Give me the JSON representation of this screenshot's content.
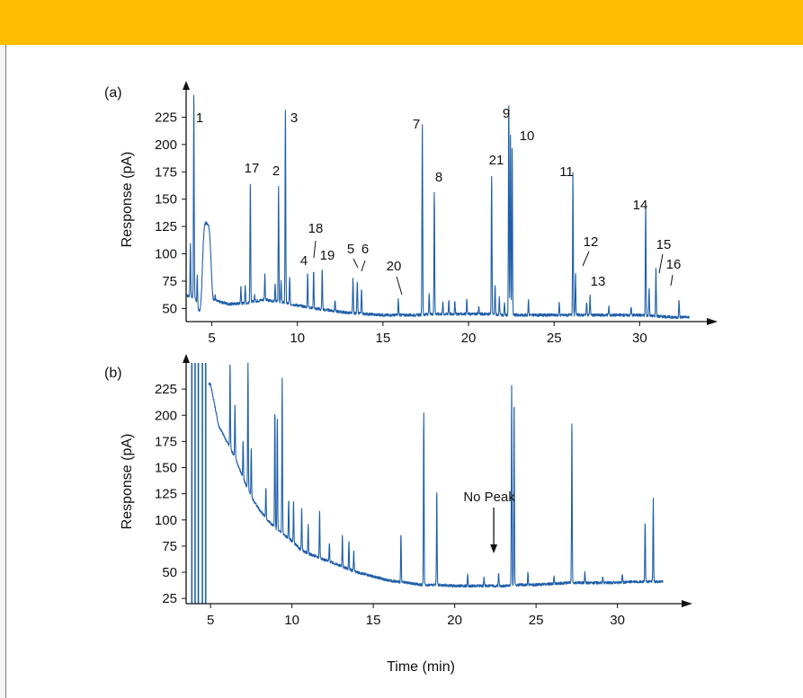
{
  "colors": {
    "band": "#ffbd00",
    "trace": "#1f5fa8",
    "axis": "#111111"
  },
  "chart_data": [
    {
      "type": "line",
      "panel_label": "(a)",
      "xlabel": "",
      "ylabel": "Response (pA)",
      "xlim": [
        3.5,
        33.5
      ],
      "ylim": [
        38,
        250
      ],
      "xticks": [
        5,
        10,
        15,
        20,
        25,
        30
      ],
      "yticks": [
        50,
        75,
        100,
        125,
        150,
        175,
        200,
        225
      ],
      "baseline": [
        [
          3.5,
          62
        ],
        [
          4.0,
          60
        ],
        [
          5.0,
          58
        ],
        [
          6.0,
          54
        ],
        [
          7.0,
          55
        ],
        [
          8.0,
          58
        ],
        [
          9.0,
          56
        ],
        [
          10.0,
          53
        ],
        [
          11.0,
          50
        ],
        [
          12.0,
          48
        ],
        [
          13.0,
          46
        ],
        [
          14.0,
          45
        ],
        [
          15.0,
          44
        ],
        [
          16.0,
          44
        ],
        [
          17.0,
          44
        ],
        [
          18.0,
          45
        ],
        [
          19.0,
          45
        ],
        [
          20.0,
          45
        ],
        [
          21.0,
          45
        ],
        [
          22.0,
          44
        ],
        [
          23.0,
          44
        ],
        [
          24.0,
          44
        ],
        [
          25.0,
          44
        ],
        [
          26.0,
          44
        ],
        [
          27.0,
          44
        ],
        [
          28.0,
          44
        ],
        [
          29.0,
          44
        ],
        [
          30.0,
          44
        ],
        [
          31.0,
          43
        ],
        [
          32.0,
          42
        ],
        [
          33.0,
          42
        ]
      ],
      "humps": [
        [
          4.7,
          128,
          0.28
        ],
        [
          4.3,
          30,
          0.2
        ]
      ],
      "peaks": [
        [
          3.75,
          110
        ],
        [
          3.95,
          250
        ],
        [
          4.15,
          90
        ],
        [
          5.2,
          62
        ],
        [
          6.7,
          70
        ],
        [
          6.95,
          72
        ],
        [
          7.25,
          167
        ],
        [
          7.5,
          62
        ],
        [
          8.1,
          82
        ],
        [
          8.7,
          72
        ],
        [
          8.9,
          163
        ],
        [
          9.05,
          75
        ],
        [
          9.3,
          233
        ],
        [
          9.55,
          78
        ],
        [
          10.6,
          82
        ],
        [
          10.95,
          85
        ],
        [
          11.45,
          85
        ],
        [
          12.2,
          58
        ],
        [
          13.25,
          78
        ],
        [
          13.5,
          75
        ],
        [
          13.75,
          68
        ],
        [
          15.9,
          58
        ],
        [
          17.3,
          220
        ],
        [
          17.7,
          63
        ],
        [
          18.0,
          157
        ],
        [
          18.5,
          55
        ],
        [
          18.85,
          58
        ],
        [
          19.2,
          56
        ],
        [
          19.9,
          58
        ],
        [
          20.6,
          52
        ],
        [
          21.35,
          172
        ],
        [
          21.55,
          72
        ],
        [
          21.8,
          60
        ],
        [
          22.1,
          55
        ],
        [
          22.35,
          240
        ],
        [
          22.45,
          210
        ],
        [
          22.55,
          199
        ],
        [
          23.5,
          58
        ],
        [
          25.3,
          55
        ],
        [
          26.1,
          175
        ],
        [
          26.25,
          82
        ],
        [
          26.9,
          56
        ],
        [
          27.1,
          62
        ],
        [
          28.2,
          52
        ],
        [
          29.5,
          52
        ],
        [
          30.35,
          145
        ],
        [
          30.55,
          68
        ],
        [
          30.95,
          87
        ],
        [
          32.3,
          58
        ]
      ],
      "peak_labels": [
        {
          "text": "1",
          "x": 3.95
        },
        {
          "text": "17",
          "x": 7.25
        },
        {
          "text": "2",
          "x": 8.9
        },
        {
          "text": "3",
          "x": 9.3
        },
        {
          "text": "4",
          "x": 10.6
        },
        {
          "text": "18",
          "x": 10.95
        },
        {
          "text": "19",
          "x": 11.45
        },
        {
          "text": "5",
          "x": 13.25
        },
        {
          "text": "6",
          "x": 13.5
        },
        {
          "text": "20",
          "x": 15.9
        },
        {
          "text": "7",
          "x": 17.3
        },
        {
          "text": "8",
          "x": 18.0
        },
        {
          "text": "21",
          "x": 21.35
        },
        {
          "text": "9",
          "x": 22.35
        },
        {
          "text": "10",
          "x": 22.5
        },
        {
          "text": "11",
          "x": 26.1
        },
        {
          "text": "12",
          "x": 26.25
        },
        {
          "text": "13",
          "x": 27.1
        },
        {
          "text": "14",
          "x": 30.35
        },
        {
          "text": "15",
          "x": 30.55
        },
        {
          "text": "16",
          "x": 30.95
        }
      ]
    },
    {
      "type": "line",
      "panel_label": "(b)",
      "xlabel": "Time (min)",
      "ylabel": "Response (pA)",
      "xlim": [
        3.5,
        33.5
      ],
      "ylim": [
        20,
        250
      ],
      "xticks": [
        5,
        10,
        15,
        20,
        25,
        30
      ],
      "yticks": [
        25,
        50,
        75,
        100,
        125,
        150,
        175,
        200,
        225
      ],
      "baseline": [
        [
          5.0,
          230
        ],
        [
          5.5,
          190
        ],
        [
          6.0,
          175
        ],
        [
          6.5,
          160
        ],
        [
          7.0,
          140
        ],
        [
          7.5,
          122
        ],
        [
          8.0,
          110
        ],
        [
          8.5,
          100
        ],
        [
          9.0,
          92
        ],
        [
          9.5,
          86
        ],
        [
          10.0,
          80
        ],
        [
          10.5,
          72
        ],
        [
          11.0,
          68
        ],
        [
          12.0,
          62
        ],
        [
          13.0,
          56
        ],
        [
          14.0,
          50
        ],
        [
          15.0,
          46
        ],
        [
          16.0,
          42
        ],
        [
          17.0,
          40
        ],
        [
          18.0,
          38
        ],
        [
          19.0,
          38
        ],
        [
          20.0,
          37
        ],
        [
          21.0,
          37
        ],
        [
          22.0,
          37
        ],
        [
          23.0,
          37
        ],
        [
          24.0,
          38
        ],
        [
          25.0,
          38
        ],
        [
          26.0,
          39
        ],
        [
          27.0,
          40
        ],
        [
          28.0,
          40
        ],
        [
          29.0,
          40
        ],
        [
          30.0,
          40
        ],
        [
          31.0,
          41
        ],
        [
          32.0,
          41
        ],
        [
          33.0,
          41
        ]
      ],
      "humps": [],
      "peaks": [
        [
          6.2,
          250
        ],
        [
          6.5,
          210
        ],
        [
          7.0,
          175
        ],
        [
          7.3,
          250
        ],
        [
          7.5,
          170
        ],
        [
          8.4,
          130
        ],
        [
          8.95,
          205
        ],
        [
          9.1,
          195
        ],
        [
          9.4,
          235
        ],
        [
          9.8,
          120
        ],
        [
          10.1,
          118
        ],
        [
          10.6,
          112
        ],
        [
          11.0,
          95
        ],
        [
          11.7,
          110
        ],
        [
          12.3,
          78
        ],
        [
          13.1,
          85
        ],
        [
          13.5,
          80
        ],
        [
          13.8,
          72
        ],
        [
          16.7,
          85
        ],
        [
          18.1,
          203
        ],
        [
          18.9,
          128
        ],
        [
          20.8,
          48
        ],
        [
          21.8,
          46
        ],
        [
          22.7,
          50
        ],
        [
          23.5,
          228
        ],
        [
          23.65,
          215
        ],
        [
          24.5,
          50
        ],
        [
          26.1,
          46
        ],
        [
          27.2,
          195
        ],
        [
          28.0,
          50
        ],
        [
          29.1,
          46
        ],
        [
          30.3,
          48
        ],
        [
          31.7,
          97
        ],
        [
          32.2,
          120
        ]
      ],
      "spikes": [
        3.85,
        4.05,
        4.25,
        4.5,
        4.7
      ],
      "annotation": {
        "text": "No Peak",
        "x": 22.4
      }
    }
  ]
}
